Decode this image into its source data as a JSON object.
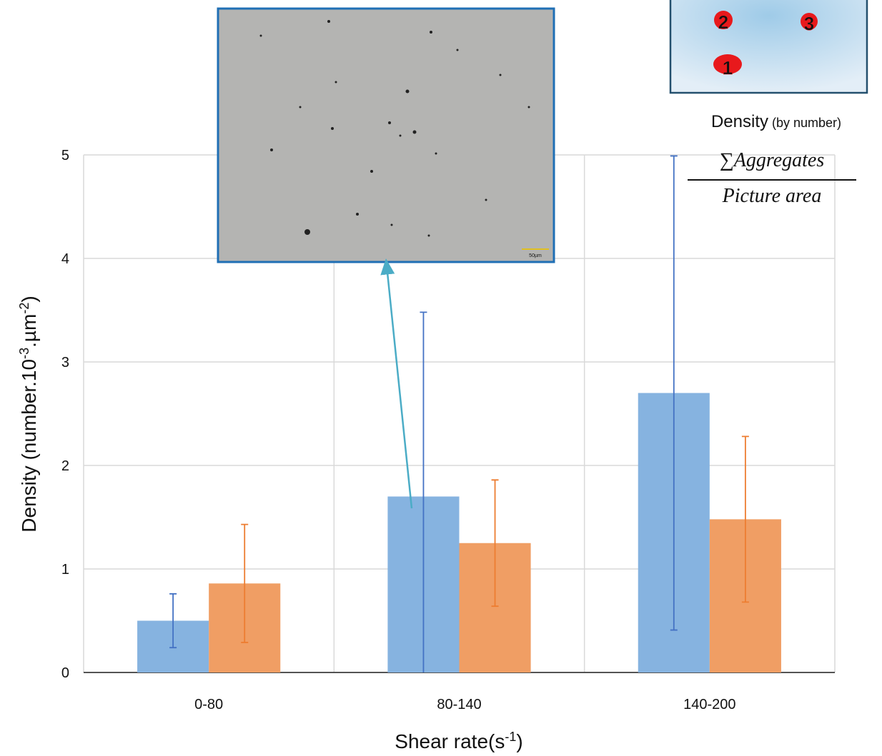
{
  "chart_data": {
    "type": "bar",
    "categories": [
      "0-80",
      "80-140",
      "140-200"
    ],
    "series": [
      {
        "color": "#86b3e0",
        "error_color": "#4472c4",
        "values": [
          0.5,
          1.7,
          2.7
        ],
        "errors": [
          0.26,
          1.78,
          2.29
        ]
      },
      {
        "color": "#f09e64",
        "error_color": "#ed7d31",
        "values": [
          0.86,
          1.25,
          1.48
        ],
        "errors": [
          0.57,
          0.61,
          0.8
        ]
      }
    ],
    "ylim": [
      0,
      5
    ],
    "yticks": [
      0,
      1,
      2,
      3,
      4,
      5
    ],
    "grid": true,
    "ylabel": [
      {
        "text": "Density (number.10"
      },
      {
        "text": "-3",
        "sup": true
      },
      {
        "text": ".µm"
      },
      {
        "text": "-2",
        "sup": true
      },
      {
        "text": ")"
      }
    ],
    "xlabel": [
      {
        "text": "Shear rate(s"
      },
      {
        "text": "-1",
        "sup": true
      },
      {
        "text": ")"
      }
    ],
    "annotations": {
      "scale_bar": "50µm",
      "markers": [
        "1",
        "2",
        "3"
      ],
      "density_title": "Density",
      "density_note": "(by number)",
      "formula_numerator": "∑Aggregates",
      "formula_denominator": "Picture area"
    }
  }
}
